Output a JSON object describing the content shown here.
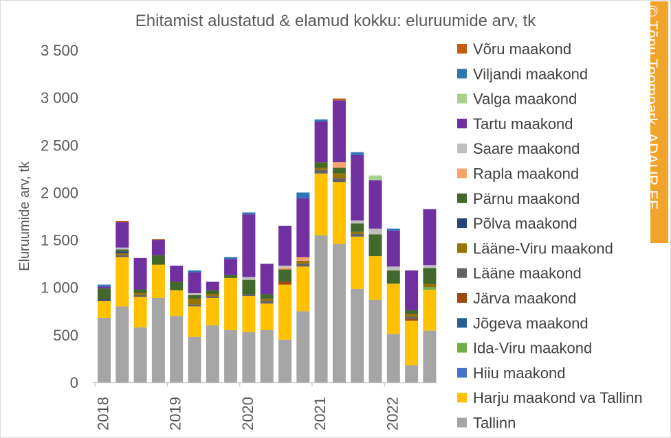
{
  "chart_data": {
    "type": "bar",
    "stacked": true,
    "title": "Ehitamist alustatud & elamud kokku: eluruumide arv, tk",
    "ylabel": "Eluruumide arv, tk",
    "xlabel": "",
    "ylim": [
      0,
      3500
    ],
    "yticks": [
      "0",
      "500",
      "1 000",
      "1 500",
      "2 000",
      "2 500",
      "3 000",
      "3 500"
    ],
    "year_labels": [
      "2018",
      "2019",
      "2020",
      "2021",
      "2022"
    ],
    "periods": [
      "2018 Q1",
      "2018 Q2",
      "2018 Q3",
      "2018 Q4",
      "2019 Q1",
      "2019 Q2",
      "2019 Q3",
      "2019 Q4",
      "2020 Q1",
      "2020 Q2",
      "2020 Q3",
      "2020 Q4",
      "2021 Q1",
      "2021 Q2",
      "2021 Q3",
      "2021 Q4",
      "2022 Q1",
      "2022 Q2",
      "2022 Q3"
    ],
    "legend_position": "right",
    "grid": false,
    "series": [
      {
        "name": "Tallinn",
        "color": "#a5a5a5",
        "values": [
          680,
          800,
          580,
          890,
          700,
          480,
          600,
          550,
          530,
          550,
          450,
          750,
          1550,
          1460,
          985,
          870,
          510,
          180,
          545
        ]
      },
      {
        "name": "Harju maakond va Tallinn",
        "color": "#ffc000",
        "values": [
          180,
          520,
          320,
          350,
          270,
          320,
          290,
          550,
          380,
          280,
          580,
          470,
          650,
          650,
          550,
          460,
          530,
          470,
          430
        ]
      },
      {
        "name": "Hiiu maakond",
        "color": "#4472c4",
        "values": [
          0,
          0,
          0,
          0,
          0,
          0,
          0,
          0,
          0,
          0,
          0,
          0,
          0,
          0,
          0,
          0,
          0,
          0,
          0
        ]
      },
      {
        "name": "Ida-Viru maakond",
        "color": "#70ad47",
        "values": [
          0,
          0,
          0,
          0,
          0,
          0,
          0,
          0,
          0,
          0,
          0,
          0,
          0,
          0,
          0,
          0,
          0,
          0,
          30
        ]
      },
      {
        "name": "Jõgeva maakond",
        "color": "#255e91",
        "values": [
          0,
          0,
          0,
          0,
          0,
          0,
          0,
          0,
          0,
          0,
          0,
          0,
          0,
          0,
          0,
          0,
          0,
          0,
          0
        ]
      },
      {
        "name": "Järva maakond",
        "color": "#9e480e",
        "values": [
          0,
          0,
          0,
          0,
          0,
          0,
          0,
          0,
          0,
          0,
          30,
          0,
          0,
          0,
          0,
          0,
          0,
          20,
          0
        ]
      },
      {
        "name": "Lääne maakond",
        "color": "#636363",
        "values": [
          0,
          20,
          20,
          0,
          0,
          20,
          20,
          0,
          20,
          30,
          0,
          30,
          40,
          40,
          30,
          0,
          0,
          20,
          0
        ]
      },
      {
        "name": "Lääne-Viru maakond",
        "color": "#997300",
        "values": [
          0,
          20,
          20,
          0,
          0,
          60,
          20,
          0,
          0,
          20,
          0,
          30,
          20,
          50,
          20,
          0,
          0,
          30,
          30
        ]
      },
      {
        "name": "Põlva maakond",
        "color": "#264478",
        "values": [
          20,
          20,
          0,
          0,
          0,
          0,
          0,
          0,
          0,
          0,
          0,
          0,
          0,
          0,
          0,
          0,
          0,
          0,
          0
        ]
      },
      {
        "name": "Pärnu maakond",
        "color": "#43682b",
        "values": [
          110,
          20,
          40,
          100,
          90,
          40,
          40,
          30,
          150,
          50,
          130,
          0,
          60,
          60,
          90,
          230,
          140,
          40,
          170
        ]
      },
      {
        "name": "Rapla maakond",
        "color": "#f4a36c",
        "values": [
          0,
          0,
          0,
          0,
          0,
          0,
          0,
          0,
          0,
          0,
          20,
          40,
          0,
          60,
          0,
          0,
          0,
          0,
          0
        ]
      },
      {
        "name": "Saare maakond",
        "color": "#bfbfbf",
        "values": [
          0,
          20,
          0,
          0,
          0,
          20,
          0,
          0,
          30,
          0,
          20,
          0,
          0,
          0,
          30,
          60,
          40,
          0,
          30
        ]
      },
      {
        "name": "Tartu maakond",
        "color": "#7030a0",
        "values": [
          20,
          270,
          330,
          160,
          170,
          220,
          90,
          170,
          660,
          320,
          420,
          620,
          430,
          650,
          690,
          510,
          380,
          420,
          590
        ]
      },
      {
        "name": "Valga maakond",
        "color": "#a9d18e",
        "values": [
          0,
          0,
          0,
          0,
          0,
          0,
          0,
          0,
          0,
          0,
          0,
          0,
          0,
          0,
          0,
          50,
          0,
          0,
          0
        ]
      },
      {
        "name": "Viljandi maakond",
        "color": "#2e75b6",
        "values": [
          20,
          0,
          0,
          0,
          0,
          20,
          0,
          20,
          20,
          0,
          0,
          60,
          20,
          0,
          30,
          0,
          20,
          0,
          0
        ]
      },
      {
        "name": "Võru maakond",
        "color": "#c55a11",
        "values": [
          0,
          10,
          0,
          10,
          0,
          0,
          0,
          0,
          0,
          0,
          0,
          0,
          0,
          20,
          0,
          0,
          0,
          0,
          0
        ]
      }
    ]
  },
  "credit": "© Tõnu Toompark, ADAUR.EE"
}
